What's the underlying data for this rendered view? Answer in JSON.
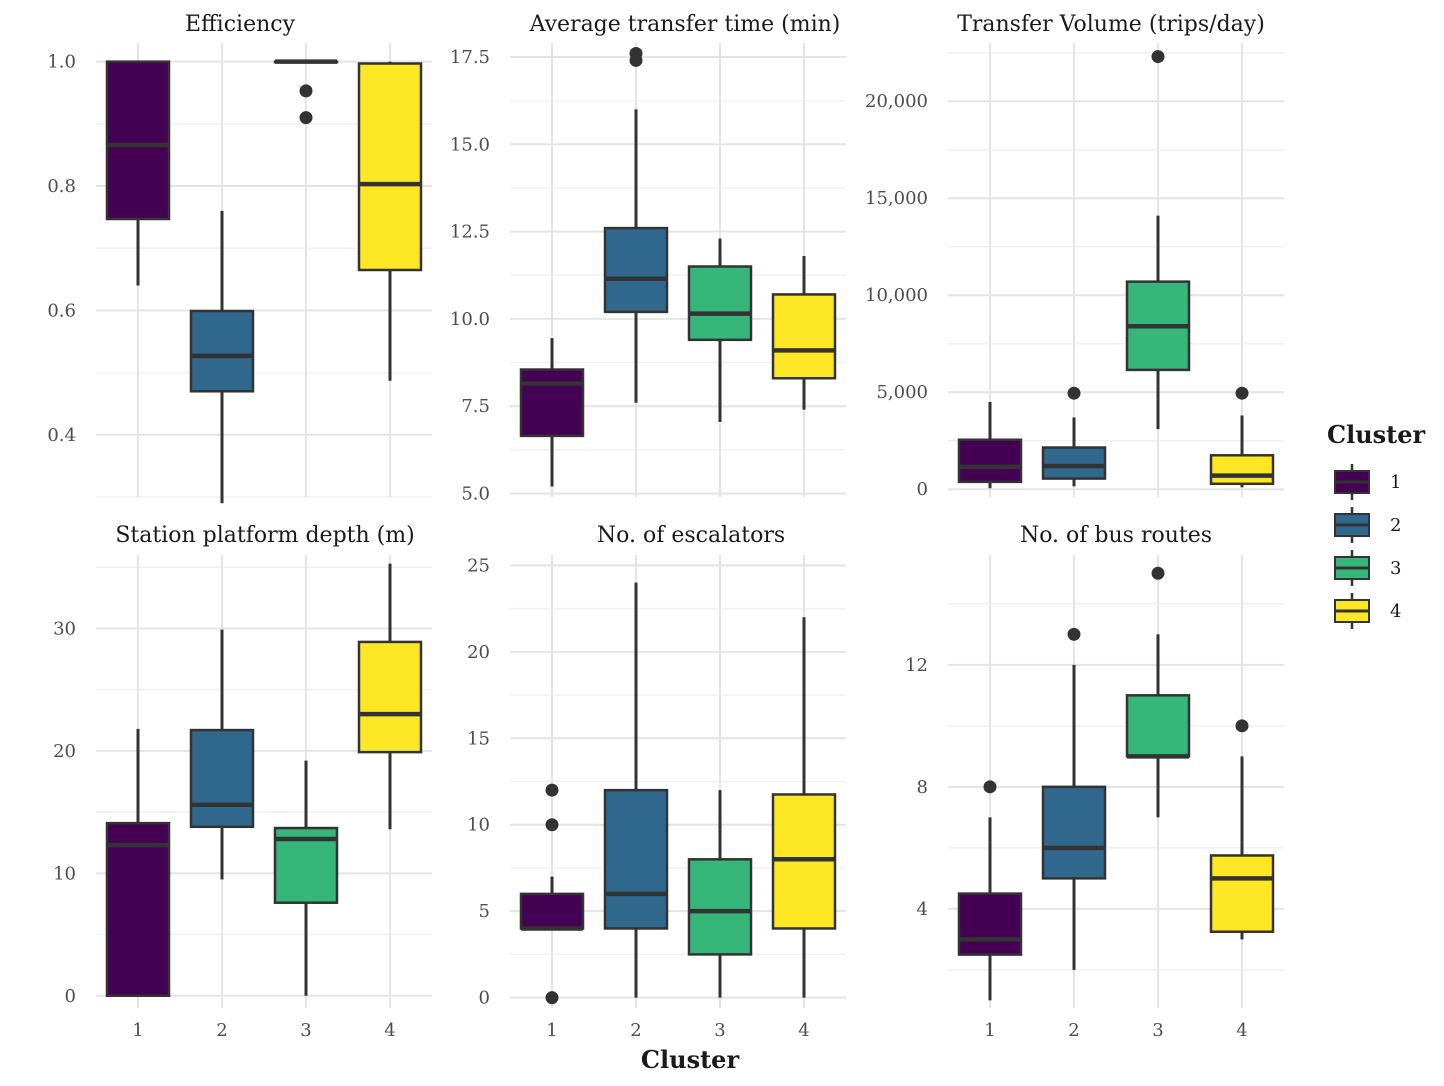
{
  "chart_data": {
    "type": "boxplot",
    "layout": "3 columns x 2 rows of panels",
    "x_axis_title": "Cluster",
    "categories": [
      "1",
      "2",
      "3",
      "4"
    ],
    "colors": [
      "#440154",
      "#31688e",
      "#35b779",
      "#fde725"
    ],
    "legend": {
      "title": "Cluster",
      "entries": [
        "1",
        "2",
        "3",
        "4"
      ],
      "placement": "right"
    },
    "grid": true,
    "panels": [
      {
        "title": "Efficiency",
        "ylim": [
          0.3,
          1.03
        ],
        "yticks": [
          0.4,
          0.6,
          0.8,
          1.0
        ],
        "ytick_labels": [
          "0.4",
          "0.6",
          "0.8",
          "1.0"
        ],
        "minor_gridlines": [
          0.3,
          0.5,
          0.7,
          0.9
        ],
        "boxes": [
          {
            "cluster": "1",
            "whisker_low": 0.64,
            "q1": 0.747,
            "median": 0.866,
            "q3": 1.0,
            "whisker_high": 1.0,
            "outliers": []
          },
          {
            "cluster": "2",
            "whisker_low": 0.29,
            "q1": 0.47,
            "median": 0.527,
            "q3": 0.599,
            "whisker_high": 0.76,
            "outliers": []
          },
          {
            "cluster": "3",
            "whisker_low": 1.0,
            "q1": 1.0,
            "median": 1.0,
            "q3": 1.0,
            "whisker_high": 1.0,
            "outliers": [
              0.953,
              0.91
            ]
          },
          {
            "cluster": "4",
            "whisker_low": 0.487,
            "q1": 0.665,
            "median": 0.803,
            "q3": 0.997,
            "whisker_high": 1.0,
            "outliers": []
          }
        ]
      },
      {
        "title": "Average transfer time (min)",
        "ylim": [
          4.9,
          17.9
        ],
        "yticks": [
          5.0,
          7.5,
          10.0,
          12.5,
          15.0,
          17.5
        ],
        "ytick_labels": [
          "5.0",
          "7.5",
          "10.0",
          "12.5",
          "15.0",
          "17.5"
        ],
        "minor_gridlines": [
          6.25,
          8.75,
          11.25,
          13.75,
          16.25
        ],
        "boxes": [
          {
            "cluster": "1",
            "whisker_low": 5.2,
            "q1": 6.65,
            "median": 8.15,
            "q3": 8.55,
            "whisker_high": 9.45,
            "outliers": []
          },
          {
            "cluster": "2",
            "whisker_low": 7.6,
            "q1": 10.2,
            "median": 11.15,
            "q3": 12.6,
            "whisker_high": 16.0,
            "outliers": [
              17.4,
              17.6
            ]
          },
          {
            "cluster": "3",
            "whisker_low": 7.05,
            "q1": 9.4,
            "median": 10.15,
            "q3": 11.5,
            "whisker_high": 12.3,
            "outliers": []
          },
          {
            "cluster": "4",
            "whisker_low": 7.4,
            "q1": 8.3,
            "median": 9.1,
            "q3": 10.7,
            "whisker_high": 11.8,
            "outliers": []
          }
        ]
      },
      {
        "title": "Transfer Volume (trips/day)",
        "ylim": [
          -400,
          23000
        ],
        "yticks": [
          0,
          5000,
          10000,
          15000,
          20000
        ],
        "ytick_labels": [
          "0",
          "5,000",
          "10,000",
          "15,000",
          "20,000"
        ],
        "minor_gridlines": [
          2500,
          7500,
          12500,
          17500,
          22500
        ],
        "boxes": [
          {
            "cluster": "1",
            "whisker_low": 50,
            "q1": 380,
            "median": 1150,
            "q3": 2550,
            "whisker_high": 4500,
            "outliers": []
          },
          {
            "cluster": "2",
            "whisker_low": 150,
            "q1": 550,
            "median": 1200,
            "q3": 2150,
            "whisker_high": 3700,
            "outliers": [
              4950
            ]
          },
          {
            "cluster": "3",
            "whisker_low": 3100,
            "q1": 6150,
            "median": 8400,
            "q3": 10700,
            "whisker_high": 14100,
            "outliers": [
              22300
            ]
          },
          {
            "cluster": "4",
            "whisker_low": 100,
            "q1": 280,
            "median": 700,
            "q3": 1750,
            "whisker_high": 3800,
            "outliers": [
              4950
            ]
          }
        ]
      },
      {
        "title": "Station platform depth (m)",
        "ylim": [
          -1,
          36
        ],
        "yticks": [
          0,
          10,
          20,
          30
        ],
        "ytick_labels": [
          "0",
          "10",
          "20",
          "30"
        ],
        "minor_gridlines": [
          5,
          15,
          25,
          35
        ],
        "boxes": [
          {
            "cluster": "1",
            "whisker_low": 0,
            "q1": 0,
            "median": 12.3,
            "q3": 14.1,
            "whisker_high": 21.8,
            "outliers": []
          },
          {
            "cluster": "2",
            "whisker_low": 9.5,
            "q1": 13.8,
            "median": 15.6,
            "q3": 21.7,
            "whisker_high": 29.9,
            "outliers": []
          },
          {
            "cluster": "3",
            "whisker_low": 0,
            "q1": 7.6,
            "median": 12.8,
            "q3": 13.7,
            "whisker_high": 19.2,
            "outliers": []
          },
          {
            "cluster": "4",
            "whisker_low": 13.6,
            "q1": 19.9,
            "median": 23.0,
            "q3": 28.9,
            "whisker_high": 35.3,
            "outliers": []
          }
        ]
      },
      {
        "title": "No. of escalators",
        "ylim": [
          -0.6,
          25.6
        ],
        "yticks": [
          0,
          5,
          10,
          15,
          20,
          25
        ],
        "ytick_labels": [
          "0",
          "5",
          "10",
          "15",
          "20",
          "25"
        ],
        "minor_gridlines": [
          2.5,
          7.5,
          12.5,
          17.5,
          22.5
        ],
        "boxes": [
          {
            "cluster": "1",
            "whisker_low": 4,
            "q1": 4,
            "median": 4,
            "q3": 6,
            "whisker_high": 7,
            "outliers": [
              12,
              10,
              0
            ]
          },
          {
            "cluster": "2",
            "whisker_low": 0,
            "q1": 4,
            "median": 6,
            "q3": 12,
            "whisker_high": 24,
            "outliers": []
          },
          {
            "cluster": "3",
            "whisker_low": 0,
            "q1": 2.5,
            "median": 5,
            "q3": 8,
            "whisker_high": 12,
            "outliers": []
          },
          {
            "cluster": "4",
            "whisker_low": 0,
            "q1": 4,
            "median": 8,
            "q3": 11.75,
            "whisker_high": 22,
            "outliers": []
          }
        ]
      },
      {
        "title": "No. of bus routes",
        "ylim": [
          0.75,
          15.6
        ],
        "yticks": [
          4,
          8,
          12
        ],
        "ytick_labels": [
          "4",
          "8",
          "12"
        ],
        "minor_gridlines": [
          2,
          6,
          10,
          14
        ],
        "boxes": [
          {
            "cluster": "1",
            "whisker_low": 1,
            "q1": 2.5,
            "median": 3,
            "q3": 4.5,
            "whisker_high": 7,
            "outliers": [
              8
            ]
          },
          {
            "cluster": "2",
            "whisker_low": 2,
            "q1": 5,
            "median": 6,
            "q3": 8,
            "whisker_high": 12,
            "outliers": [
              13
            ]
          },
          {
            "cluster": "3",
            "whisker_low": 7,
            "q1": 9,
            "median": 9,
            "q3": 11,
            "whisker_high": 13,
            "outliers": [
              15
            ]
          },
          {
            "cluster": "4",
            "whisker_low": 3,
            "q1": 3.25,
            "median": 5,
            "q3": 5.75,
            "whisker_high": 9,
            "outliers": [
              10
            ]
          }
        ]
      }
    ]
  }
}
